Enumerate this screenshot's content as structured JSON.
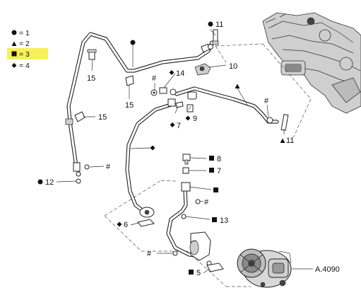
{
  "legend": {
    "items": [
      {
        "symbol": "circle",
        "label": "= 1"
      },
      {
        "symbol": "triangle",
        "label": "= 2"
      },
      {
        "symbol": "square",
        "label": "= 3",
        "highlighted": true
      },
      {
        "symbol": "diamond",
        "label": "= 4"
      }
    ],
    "highlight_color": "#f7f05a"
  },
  "callouts": {
    "c11_top": "11",
    "c10": "10",
    "c14": "14",
    "c15_a": "15",
    "c15_b": "15",
    "c15_c": "15",
    "c9": "9",
    "c7_a": "7",
    "c11_bottom": "11",
    "c8": "8",
    "c7_b": "7",
    "c12": "12",
    "c6": "6",
    "c13": "13",
    "c5": "5",
    "a4090": "A.4090",
    "hash": "#"
  },
  "colors": {
    "line": "#222222",
    "background": "#ffffff"
  }
}
